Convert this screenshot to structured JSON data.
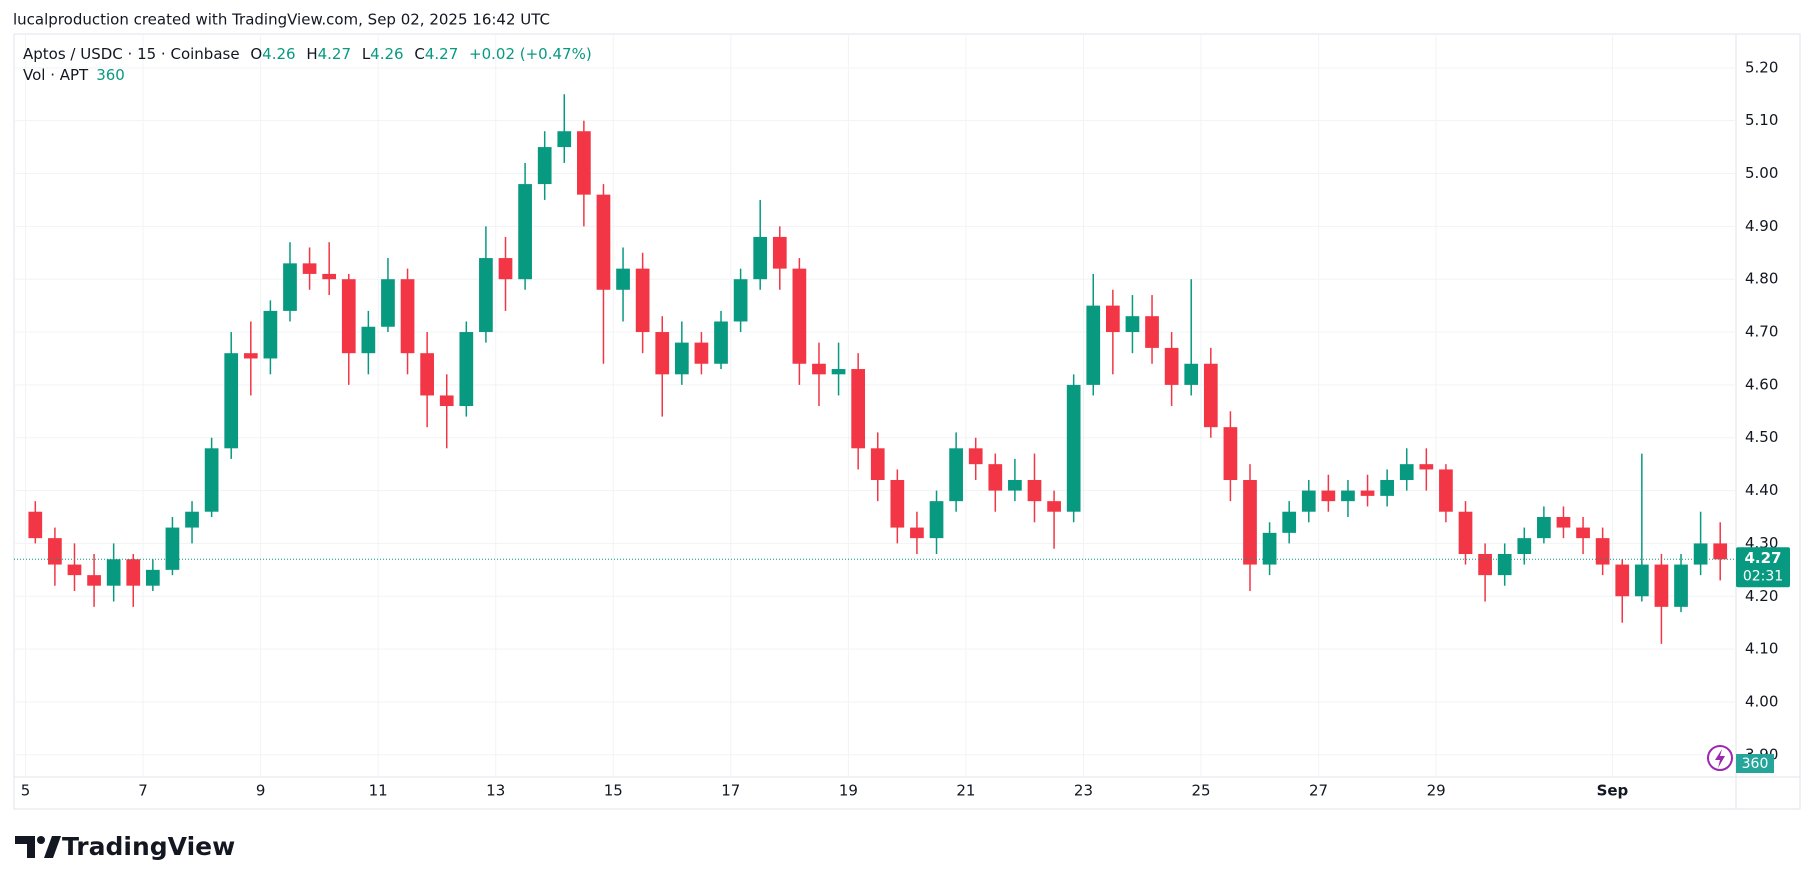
{
  "credit": "lucalproduction created with TradingView.com, Sep 02, 2025 16:42 UTC",
  "brand": "TradingView",
  "legend": {
    "symbol": "Aptos / USDC · 15 · Coinbase",
    "open_label": "O",
    "open": 4.26,
    "high_label": "H",
    "high": 4.27,
    "low_label": "L",
    "low": 4.26,
    "close_label": "C",
    "close": 4.27,
    "change": "+0.02 (+0.47%)",
    "volume_label": "Vol · APT",
    "volume": 360
  },
  "chart_data": {
    "type": "candlestick",
    "categories": [
      "5",
      null,
      null,
      null,
      null,
      null,
      "7",
      null,
      null,
      null,
      null,
      null,
      "9",
      null,
      null,
      null,
      null,
      null,
      "11",
      null,
      null,
      null,
      null,
      null,
      "13",
      null,
      null,
      null,
      null,
      null,
      "15",
      null,
      null,
      null,
      null,
      null,
      "17",
      null,
      null,
      null,
      null,
      null,
      "19",
      null,
      null,
      null,
      null,
      null,
      "21",
      null,
      null,
      null,
      null,
      null,
      "23",
      null,
      null,
      null,
      null,
      null,
      "25",
      null,
      null,
      null,
      null,
      null,
      "27",
      null,
      null,
      null,
      null,
      null,
      "29",
      null,
      null,
      null,
      null,
      null,
      null,
      null,
      null,
      "Sep",
      null,
      null,
      null,
      null,
      null
    ],
    "open": [
      4.36,
      4.31,
      4.26,
      4.24,
      4.22,
      4.27,
      4.22,
      4.25,
      4.33,
      4.36,
      4.48,
      4.66,
      4.65,
      4.74,
      4.83,
      4.81,
      4.8,
      4.66,
      4.71,
      4.8,
      4.66,
      4.58,
      4.56,
      4.7,
      4.84,
      4.8,
      4.98,
      5.05,
      5.08,
      4.96,
      4.78,
      4.82,
      4.7,
      4.62,
      4.68,
      4.64,
      4.72,
      4.8,
      4.88,
      4.82,
      4.64,
      4.62,
      4.63,
      4.48,
      4.42,
      4.33,
      4.31,
      4.38,
      4.48,
      4.45,
      4.4,
      4.42,
      4.38,
      4.36,
      4.6,
      4.75,
      4.7,
      4.73,
      4.67,
      4.6,
      4.64,
      4.52,
      4.42,
      4.26,
      4.32,
      4.36,
      4.4,
      4.38,
      4.4,
      4.39,
      4.42,
      4.45,
      4.44,
      4.36,
      4.28,
      4.24,
      4.28,
      4.31,
      4.35,
      4.33,
      4.31,
      4.26,
      4.2,
      4.26,
      4.18,
      4.26,
      4.3
    ],
    "high": [
      4.38,
      4.33,
      4.3,
      4.28,
      4.3,
      4.28,
      4.27,
      4.35,
      4.38,
      4.5,
      4.7,
      4.72,
      4.76,
      4.87,
      4.86,
      4.87,
      4.81,
      4.74,
      4.84,
      4.82,
      4.7,
      4.62,
      4.72,
      4.9,
      4.88,
      5.02,
      5.08,
      5.15,
      5.1,
      4.98,
      4.86,
      4.85,
      4.73,
      4.72,
      4.7,
      4.74,
      4.82,
      4.95,
      4.9,
      4.84,
      4.68,
      4.68,
      4.66,
      4.51,
      4.44,
      4.36,
      4.4,
      4.51,
      4.5,
      4.47,
      4.46,
      4.47,
      4.4,
      4.62,
      4.81,
      4.78,
      4.77,
      4.77,
      4.7,
      4.8,
      4.67,
      4.55,
      4.45,
      4.34,
      4.38,
      4.42,
      4.43,
      4.42,
      4.43,
      4.44,
      4.48,
      4.48,
      4.45,
      4.38,
      4.3,
      4.3,
      4.33,
      4.37,
      4.37,
      4.35,
      4.33,
      4.27,
      4.47,
      4.28,
      4.28,
      4.36,
      4.34
    ],
    "low": [
      4.3,
      4.22,
      4.21,
      4.18,
      4.19,
      4.18,
      4.21,
      4.24,
      4.3,
      4.35,
      4.46,
      4.58,
      4.62,
      4.72,
      4.78,
      4.77,
      4.6,
      4.62,
      4.7,
      4.62,
      4.52,
      4.48,
      4.54,
      4.68,
      4.74,
      4.78,
      4.95,
      5.02,
      4.9,
      4.64,
      4.72,
      4.66,
      4.54,
      4.6,
      4.62,
      4.63,
      4.7,
      4.78,
      4.78,
      4.6,
      4.56,
      4.58,
      4.44,
      4.38,
      4.3,
      4.28,
      4.28,
      4.36,
      4.42,
      4.36,
      4.38,
      4.34,
      4.29,
      4.34,
      4.58,
      4.62,
      4.66,
      4.64,
      4.56,
      4.58,
      4.5,
      4.38,
      4.21,
      4.24,
      4.3,
      4.34,
      4.36,
      4.35,
      4.37,
      4.37,
      4.4,
      4.4,
      4.34,
      4.26,
      4.19,
      4.22,
      4.26,
      4.3,
      4.31,
      4.28,
      4.24,
      4.15,
      4.19,
      4.11,
      4.17,
      4.24,
      4.23
    ],
    "close": [
      4.31,
      4.26,
      4.24,
      4.22,
      4.27,
      4.22,
      4.25,
      4.33,
      4.36,
      4.48,
      4.66,
      4.65,
      4.74,
      4.83,
      4.81,
      4.8,
      4.66,
      4.71,
      4.8,
      4.66,
      4.58,
      4.56,
      4.7,
      4.84,
      4.8,
      4.98,
      5.05,
      5.08,
      4.96,
      4.78,
      4.82,
      4.7,
      4.62,
      4.68,
      4.64,
      4.72,
      4.8,
      4.88,
      4.82,
      4.64,
      4.62,
      4.63,
      4.48,
      4.42,
      4.33,
      4.31,
      4.38,
      4.48,
      4.45,
      4.4,
      4.42,
      4.38,
      4.36,
      4.6,
      4.75,
      4.7,
      4.73,
      4.67,
      4.6,
      4.64,
      4.52,
      4.42,
      4.26,
      4.32,
      4.36,
      4.4,
      4.38,
      4.4,
      4.39,
      4.42,
      4.45,
      4.44,
      4.36,
      4.28,
      4.24,
      4.28,
      4.31,
      4.35,
      4.33,
      4.31,
      4.26,
      4.2,
      4.26,
      4.18,
      4.26,
      4.3,
      4.27
    ],
    "up_color": "#089981",
    "down_color": "#f23645",
    "last_price": 4.27,
    "countdown": "02:31",
    "ylim": [
      3.858,
      5.264
    ],
    "yticks": [
      {
        "value": 3.9,
        "label": "3.90"
      },
      {
        "value": 4.0,
        "label": "4.00"
      },
      {
        "value": 4.1,
        "label": "4.10"
      },
      {
        "value": 4.2,
        "label": "4.20"
      },
      {
        "value": 4.3,
        "label": "4.30"
      },
      {
        "value": 4.4,
        "label": "4.40"
      },
      {
        "value": 4.5,
        "label": "4.50"
      },
      {
        "value": 4.6,
        "label": "4.60"
      },
      {
        "value": 4.7,
        "label": "4.70"
      },
      {
        "value": 4.8,
        "label": "4.80"
      },
      {
        "value": 4.9,
        "label": "4.90"
      },
      {
        "value": 5.0,
        "label": "5.00"
      },
      {
        "value": 5.1,
        "label": "5.10"
      },
      {
        "value": 5.2,
        "label": "5.20"
      }
    ],
    "grid": true
  }
}
